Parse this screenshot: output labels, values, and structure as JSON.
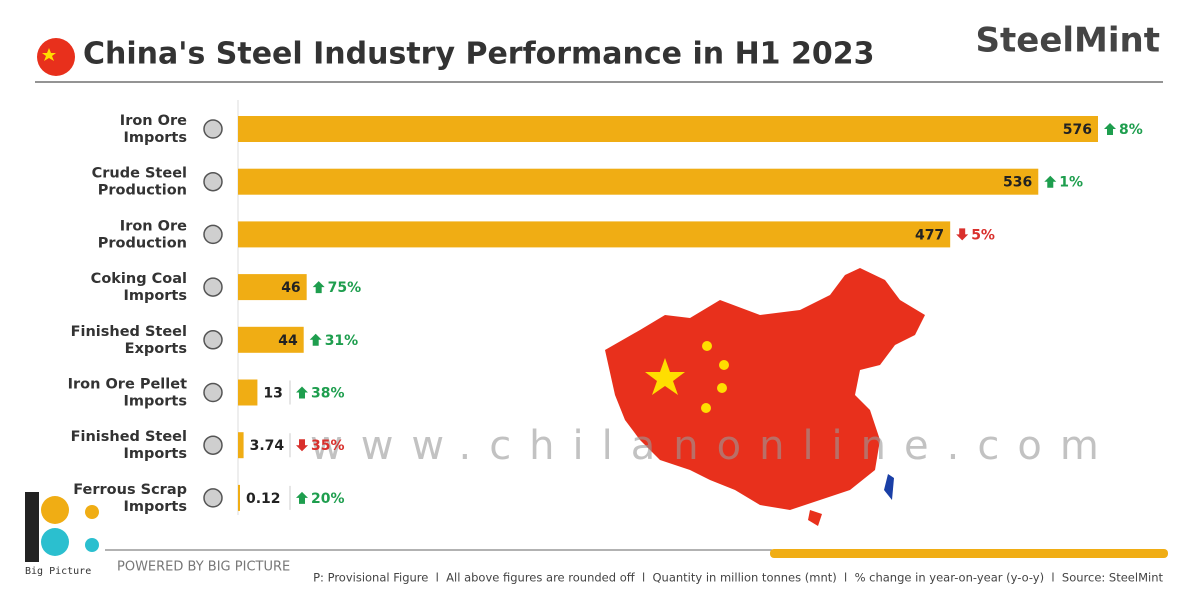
{
  "chart_data": {
    "type": "bar",
    "orientation": "horizontal",
    "title": "China's Steel Industry Performance in H1 2023",
    "brand": "SteelMint",
    "categories": [
      "Iron Ore Imports",
      "Crude Steel Production",
      "Iron Ore Production",
      "Coking Coal Imports",
      "Finished Steel Exports",
      "Iron Ore Pellet Imports",
      "Finished Steel Imports",
      "Ferrous Scrap Imports"
    ],
    "values": [
      576,
      536,
      477,
      46,
      44,
      13,
      3.74,
      0.12
    ],
    "color": "#f0ad14",
    "yoy_change": {
      "values": [
        8,
        1,
        -5,
        75,
        31,
        38,
        -35,
        20
      ],
      "value_labels": [
        "8%",
        "1%",
        "5%",
        "75%",
        "31%",
        "38%",
        "35%",
        "20%"
      ],
      "up_color": "#1e9e4e",
      "down_color": "#d9302c"
    },
    "watermark": "www.chilanonline.com",
    "publisher": "Big Picture",
    "powered_by": "POWERED BY BIG PICTURE",
    "footnote": "P: Provisional Figure  l  All above figures are rounded off  l  Quantity in million tonnes (mnt)  l  % change in year-on-year (y-o-y)  l  Source: SteelMint"
  }
}
